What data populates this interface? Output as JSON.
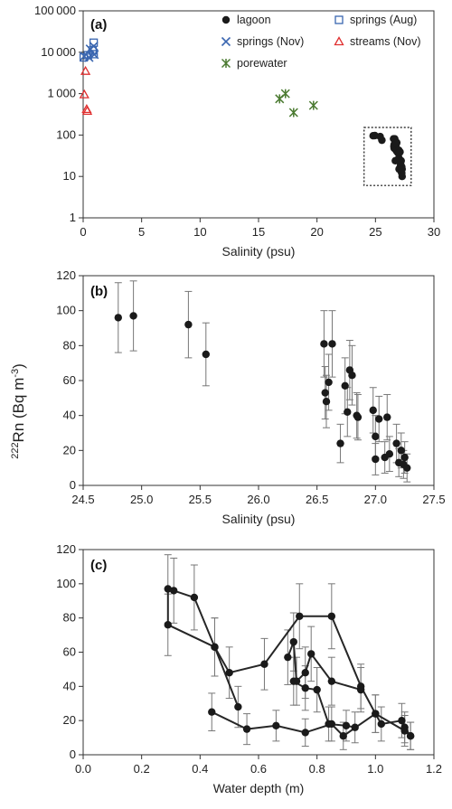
{
  "ylabel_shared": {
    "prefix": "222",
    "main": "Rn (Bq m",
    "exp": "-3",
    "suffix": ")"
  },
  "chart_data": [
    {
      "panel_label": "(a)",
      "type": "scatter",
      "log_y": true,
      "xlim": [
        0,
        30
      ],
      "ylim": [
        1,
        100000
      ],
      "xticks": [
        "0",
        "5",
        "10",
        "15",
        "20",
        "25",
        "30"
      ],
      "yticks": [
        "1",
        "10",
        "100",
        "1000",
        "10000",
        "100000"
      ],
      "xlabel": "Salinity (psu)",
      "series": [
        {
          "name": "lagoon",
          "marker": "circle",
          "color": "#1a1a1a",
          "points": [
            [
              24.8,
              96
            ],
            [
              24.95,
              97
            ],
            [
              25.4,
              92
            ],
            [
              25.55,
              75
            ],
            [
              26.55,
              81
            ],
            [
              26.58,
              53
            ],
            [
              26.6,
              48
            ],
            [
              26.6,
              59
            ],
            [
              26.65,
              81
            ],
            [
              26.7,
              24
            ],
            [
              26.75,
              57
            ],
            [
              26.78,
              42
            ],
            [
              26.8,
              63
            ],
            [
              26.82,
              66
            ],
            [
              26.85,
              40
            ],
            [
              26.9,
              38
            ],
            [
              27.0,
              43
            ],
            [
              27.0,
              28
            ],
            [
              27.02,
              15
            ],
            [
              27.05,
              38
            ],
            [
              27.1,
              39
            ],
            [
              27.12,
              17
            ],
            [
              27.15,
              20
            ],
            [
              27.2,
              24
            ],
            [
              27.22,
              13
            ],
            [
              27.25,
              17
            ],
            [
              27.25,
              12
            ],
            [
              27.28,
              15
            ],
            [
              27.28,
              10
            ]
          ]
        },
        {
          "name": "springs (Aug)",
          "marker": "square",
          "color": "#3a66b0",
          "points": [
            [
              0.05,
              7500
            ],
            [
              0.4,
              8500
            ],
            [
              0.8,
              11000
            ],
            [
              0.9,
              17000
            ],
            [
              0.9,
              9000
            ]
          ]
        },
        {
          "name": "springs (Nov)",
          "marker": "x",
          "color": "#3a66b0",
          "points": [
            [
              0.1,
              8000
            ],
            [
              0.5,
              7500
            ],
            [
              0.6,
              12000
            ],
            [
              0.9,
              14000
            ],
            [
              0.95,
              8800
            ]
          ]
        },
        {
          "name": "streams (Nov)",
          "marker": "triangle",
          "color": "#e03030",
          "points": [
            [
              0.1,
              950
            ],
            [
              0.2,
              3500
            ],
            [
              0.3,
              420
            ],
            [
              0.35,
              380
            ]
          ]
        },
        {
          "name": "porewater",
          "marker": "asterisk",
          "color": "#4a7a30",
          "points": [
            [
              16.8,
              750
            ],
            [
              17.3,
              1000
            ],
            [
              18.0,
              350
            ],
            [
              19.7,
              520
            ]
          ]
        }
      ],
      "annotation": "dotted rectangle around lagoon points"
    },
    {
      "panel_label": "(b)",
      "type": "scatter",
      "xlim": [
        24.5,
        27.5
      ],
      "ylim": [
        0,
        120
      ],
      "xticks": [
        "24.5",
        "25.0",
        "25.5",
        "26.0",
        "26.5",
        "27.0",
        "27.5"
      ],
      "yticks": [
        "0",
        "20",
        "40",
        "60",
        "80",
        "100",
        "120"
      ],
      "xlabel": "Salinity (psu)",
      "error_bar_pct": 0.2,
      "points": [
        {
          "x": 24.8,
          "y": 96,
          "err": 20
        },
        {
          "x": 24.93,
          "y": 97,
          "err": 20
        },
        {
          "x": 25.4,
          "y": 92,
          "err": 19
        },
        {
          "x": 25.55,
          "y": 75,
          "err": 18
        },
        {
          "x": 26.56,
          "y": 81,
          "err": 19
        },
        {
          "x": 26.57,
          "y": 53,
          "err": 15
        },
        {
          "x": 26.58,
          "y": 48,
          "err": 15
        },
        {
          "x": 26.6,
          "y": 59,
          "err": 16
        },
        {
          "x": 26.63,
          "y": 81,
          "err": 19
        },
        {
          "x": 26.7,
          "y": 24,
          "err": 11
        },
        {
          "x": 26.74,
          "y": 57,
          "err": 16
        },
        {
          "x": 26.76,
          "y": 42,
          "err": 14
        },
        {
          "x": 26.78,
          "y": 66,
          "err": 17
        },
        {
          "x": 26.8,
          "y": 63,
          "err": 17
        },
        {
          "x": 26.84,
          "y": 40,
          "err": 13
        },
        {
          "x": 26.85,
          "y": 39,
          "err": 13
        },
        {
          "x": 26.98,
          "y": 43,
          "err": 13
        },
        {
          "x": 27.0,
          "y": 28,
          "err": 12
        },
        {
          "x": 27.0,
          "y": 15,
          "err": 9
        },
        {
          "x": 27.03,
          "y": 38,
          "err": 13
        },
        {
          "x": 27.08,
          "y": 16,
          "err": 9
        },
        {
          "x": 27.1,
          "y": 39,
          "err": 13
        },
        {
          "x": 27.12,
          "y": 18,
          "err": 10
        },
        {
          "x": 27.18,
          "y": 24,
          "err": 11
        },
        {
          "x": 27.2,
          "y": 13,
          "err": 8
        },
        {
          "x": 27.22,
          "y": 20,
          "err": 10
        },
        {
          "x": 27.24,
          "y": 12,
          "err": 8
        },
        {
          "x": 27.25,
          "y": 16,
          "err": 9
        },
        {
          "x": 27.27,
          "y": 10,
          "err": 8
        }
      ]
    },
    {
      "panel_label": "(c)",
      "type": "line",
      "xlim": [
        0.0,
        1.2
      ],
      "ylim": [
        0,
        120
      ],
      "xticks": [
        "0.0",
        "0.2",
        "0.4",
        "0.6",
        "0.8",
        "1.0",
        "1.2"
      ],
      "yticks": [
        "0",
        "20",
        "40",
        "60",
        "80",
        "100",
        "120"
      ],
      "xlabel": "Water depth (m)",
      "series": [
        {
          "points": [
            {
              "x": 0.29,
              "y": 97,
              "err": 20
            },
            {
              "x": 0.29,
              "y": 76,
              "err": 18
            },
            {
              "x": 0.45,
              "y": 63,
              "err": 17
            },
            {
              "x": 0.5,
              "y": 48,
              "err": 15
            },
            {
              "x": 0.62,
              "y": 53,
              "err": 15
            },
            {
              "x": 0.74,
              "y": 81,
              "err": 19
            },
            {
              "x": 0.85,
              "y": 81,
              "err": 19
            },
            {
              "x": 0.95,
              "y": 40,
              "err": 13
            },
            {
              "x": 1.0,
              "y": 24,
              "err": 11
            },
            {
              "x": 1.1,
              "y": 14,
              "err": 9
            },
            {
              "x": 1.12,
              "y": 11,
              "err": 8
            }
          ]
        },
        {
          "points": [
            {
              "x": 0.31,
              "y": 96,
              "err": 19
            },
            {
              "x": 0.38,
              "y": 92,
              "err": 19
            },
            {
              "x": 0.45,
              "y": 63,
              "err": 17
            },
            {
              "x": 0.53,
              "y": 28,
              "err": 12
            }
          ]
        },
        {
          "points": [
            {
              "x": 0.7,
              "y": 57,
              "err": 16
            },
            {
              "x": 0.72,
              "y": 66,
              "err": 17
            },
            {
              "x": 0.73,
              "y": 43,
              "err": 14
            },
            {
              "x": 0.76,
              "y": 48,
              "err": 15
            },
            {
              "x": 0.78,
              "y": 59,
              "err": 16
            },
            {
              "x": 0.85,
              "y": 43,
              "err": 14
            },
            {
              "x": 0.95,
              "y": 38,
              "err": 13
            }
          ]
        },
        {
          "points": [
            {
              "x": 0.72,
              "y": 43,
              "err": 14
            },
            {
              "x": 0.76,
              "y": 39,
              "err": 13
            },
            {
              "x": 0.8,
              "y": 38,
              "err": 13
            },
            {
              "x": 0.84,
              "y": 18,
              "err": 10
            },
            {
              "x": 0.9,
              "y": 17,
              "err": 9
            },
            {
              "x": 0.93,
              "y": 16,
              "err": 9
            }
          ]
        },
        {
          "points": [
            {
              "x": 0.44,
              "y": 25,
              "err": 11
            },
            {
              "x": 0.56,
              "y": 15,
              "err": 9
            },
            {
              "x": 0.66,
              "y": 17,
              "err": 9
            },
            {
              "x": 0.76,
              "y": 13,
              "err": 8
            },
            {
              "x": 0.85,
              "y": 18,
              "err": 10
            },
            {
              "x": 0.89,
              "y": 11,
              "err": 8
            },
            {
              "x": 1.0,
              "y": 24,
              "err": 11
            },
            {
              "x": 1.02,
              "y": 18,
              "err": 10
            },
            {
              "x": 1.09,
              "y": 20,
              "err": 10
            },
            {
              "x": 1.1,
              "y": 16,
              "err": 9
            },
            {
              "x": 1.12,
              "y": 11,
              "err": 8
            }
          ]
        }
      ]
    }
  ]
}
